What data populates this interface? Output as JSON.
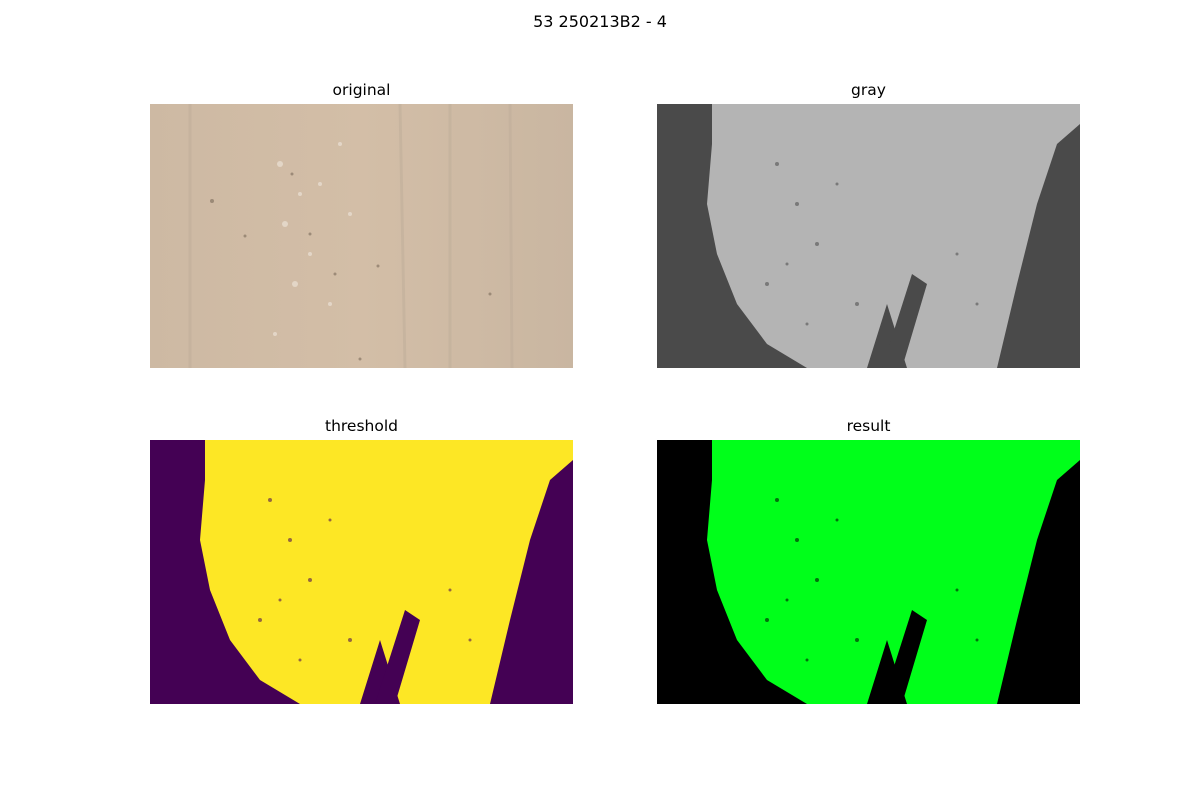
{
  "figure": {
    "title": "53 250213B2 - 4"
  },
  "panels": [
    {
      "title": "original",
      "bg": "#cbb8a2",
      "fg": "#d6c2aa"
    },
    {
      "title": "gray",
      "bg": "#4a4a4a",
      "fg": "#b4b4b4"
    },
    {
      "title": "threshold",
      "bg": "#440154",
      "fg": "#fde725"
    },
    {
      "title": "result",
      "bg": "#000000",
      "fg": "#00ff1a"
    }
  ]
}
